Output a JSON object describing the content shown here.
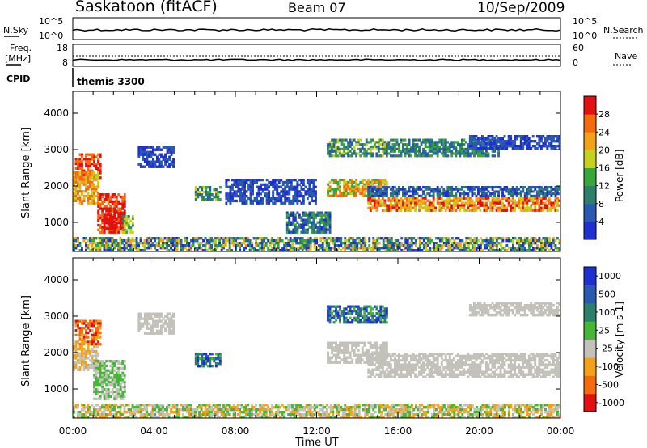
{
  "header": {
    "station": "Saskatoon (fitACF)",
    "beam": "Beam 07",
    "date": "10/Sep/2009"
  },
  "top_panels": {
    "nsky_label": "N.Sky",
    "nsky_ticks": [
      "10^5",
      "10^0"
    ],
    "nsearch_label": "N.Search",
    "nsearch_ticks": [
      "10^5",
      "10^0"
    ],
    "freq_label": "Freq.",
    "freq_unit": "[MHz]",
    "freq_ticks": [
      "18",
      "8"
    ],
    "nave_label": "Nave",
    "nave_ticks": [
      "60",
      "0"
    ],
    "cpid_label": "CPID",
    "cpid_value": "themis 3300"
  },
  "colors": {
    "power": [
      "#1f2fd0",
      "#2a5ab0",
      "#2e7f6a",
      "#3aa53a",
      "#c6d11f",
      "#f2a21a",
      "#f36a10",
      "#e21010"
    ],
    "velocity": [
      "#1f2fd0",
      "#2a5ab0",
      "#2e7f6a",
      "#48b43a",
      "#c2c2bb",
      "#f2a21a",
      "#f36a10",
      "#e21010"
    ]
  },
  "chart_data": [
    {
      "type": "heatmap",
      "panel": "power",
      "ylabel": "Slant Range [km]",
      "yticks": [
        "1000",
        "2000",
        "3000",
        "4000"
      ],
      "ylim": [
        200,
        4600
      ],
      "xlim": [
        0,
        24
      ],
      "colorbar_label": "Power [dB]",
      "colorbar_ticks": [
        "4",
        "8",
        "12",
        "16",
        "20",
        "24",
        "28"
      ],
      "regions": [
        {
          "t": [
            0.1,
            1.4
          ],
          "r": [
            2200,
            2900
          ],
          "level": [
            6,
            7
          ]
        },
        {
          "t": [
            0.0,
            1.3
          ],
          "r": [
            1500,
            2400
          ],
          "level": [
            4,
            6
          ]
        },
        {
          "t": [
            1.2,
            2.6
          ],
          "r": [
            700,
            1800
          ],
          "level": [
            6,
            7
          ]
        },
        {
          "t": [
            1.5,
            2.5
          ],
          "r": [
            800,
            1300
          ],
          "level": [
            7,
            7
          ]
        },
        {
          "t": [
            2.4,
            3.0
          ],
          "r": [
            700,
            1200
          ],
          "level": [
            2,
            4
          ]
        },
        {
          "t": [
            3.2,
            5.0
          ],
          "r": [
            2500,
            3100
          ],
          "level": [
            0,
            1
          ]
        },
        {
          "t": [
            6.0,
            7.3
          ],
          "r": [
            1600,
            2000
          ],
          "level": [
            1,
            4
          ]
        },
        {
          "t": [
            7.5,
            12.0
          ],
          "r": [
            1500,
            2200
          ],
          "level": [
            0,
            1
          ]
        },
        {
          "t": [
            0.0,
            24.0
          ],
          "r": [
            200,
            600
          ],
          "level": [
            0,
            5
          ]
        },
        {
          "t": [
            10.5,
            12.7
          ],
          "r": [
            700,
            1300
          ],
          "level": [
            0,
            3
          ]
        },
        {
          "t": [
            12.5,
            15.5
          ],
          "r": [
            2800,
            3300
          ],
          "level": [
            1,
            4
          ]
        },
        {
          "t": [
            12.5,
            15.5
          ],
          "r": [
            1700,
            2200
          ],
          "level": [
            3,
            6
          ]
        },
        {
          "t": [
            14.5,
            24.0
          ],
          "r": [
            1300,
            1700
          ],
          "level": [
            4,
            7
          ]
        },
        {
          "t": [
            14.5,
            24.0
          ],
          "r": [
            1700,
            2000
          ],
          "level": [
            0,
            2
          ]
        },
        {
          "t": [
            15.5,
            21.0
          ],
          "r": [
            2800,
            3300
          ],
          "level": [
            1,
            3
          ]
        },
        {
          "t": [
            19.5,
            24.0
          ],
          "r": [
            3000,
            3400
          ],
          "level": [
            0,
            1
          ]
        }
      ]
    },
    {
      "type": "heatmap",
      "panel": "velocity",
      "ylabel": "Slant Range [km]",
      "yticks": [
        "1000",
        "2000",
        "3000",
        "4000"
      ],
      "ylim": [
        200,
        4600
      ],
      "xlim": [
        0,
        24
      ],
      "xticks": [
        "00:00",
        "04:00",
        "08:00",
        "12:00",
        "16:00",
        "20:00",
        "00:00"
      ],
      "xlabel": "Time UT",
      "colorbar_label": "Velocity [m s-1]",
      "colorbar_ticks": [
        "1000",
        "500",
        "100",
        "25",
        "-25",
        "-100",
        "-500",
        "-1000"
      ],
      "regions": [
        {
          "t": [
            0.1,
            1.4
          ],
          "r": [
            2200,
            2900
          ],
          "level": [
            5,
            7
          ]
        },
        {
          "t": [
            0.0,
            1.3
          ],
          "r": [
            1500,
            2200
          ],
          "level": [
            4,
            5
          ]
        },
        {
          "t": [
            1.0,
            2.6
          ],
          "r": [
            700,
            1800
          ],
          "level": [
            3,
            4
          ]
        },
        {
          "t": [
            3.2,
            5.0
          ],
          "r": [
            2500,
            3100
          ],
          "level": [
            4,
            4
          ]
        },
        {
          "t": [
            6.0,
            7.3
          ],
          "r": [
            1600,
            2000
          ],
          "level": [
            0,
            3
          ]
        },
        {
          "t": [
            0.0,
            24.0
          ],
          "r": [
            200,
            600
          ],
          "level": [
            3,
            5
          ]
        },
        {
          "t": [
            12.5,
            15.5
          ],
          "r": [
            2800,
            3300
          ],
          "level": [
            0,
            3
          ]
        },
        {
          "t": [
            12.5,
            15.5
          ],
          "r": [
            1700,
            2300
          ],
          "level": [
            4,
            4
          ]
        },
        {
          "t": [
            14.5,
            24.0
          ],
          "r": [
            1300,
            1700
          ],
          "level": [
            4,
            4
          ]
        },
        {
          "t": [
            14.5,
            24.0
          ],
          "r": [
            1700,
            2000
          ],
          "level": [
            4,
            4
          ]
        },
        {
          "t": [
            19.5,
            24.0
          ],
          "r": [
            3000,
            3400
          ],
          "level": [
            4,
            4
          ]
        }
      ]
    }
  ]
}
